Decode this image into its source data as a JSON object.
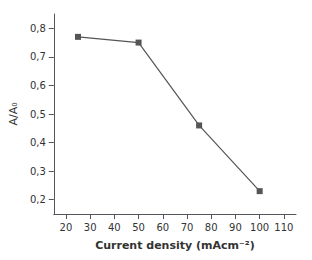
{
  "chart_data": {
    "type": "line",
    "x": [
      25,
      50,
      75,
      100
    ],
    "values": [
      0.77,
      0.75,
      0.46,
      0.23
    ],
    "xlabel": "Current density (mAcm⁻²)",
    "ylabel": "A/A₀",
    "xlim": [
      15,
      115
    ],
    "ylim": [
      0.15,
      0.85
    ],
    "xticks": [
      20,
      30,
      40,
      50,
      60,
      70,
      80,
      90,
      100,
      110
    ],
    "yticks": [
      {
        "value": 0.2,
        "label": "0,2"
      },
      {
        "value": 0.3,
        "label": "0,3"
      },
      {
        "value": 0.4,
        "label": "0,4"
      },
      {
        "value": 0.5,
        "label": "0,5"
      },
      {
        "value": 0.6,
        "label": "0,6"
      },
      {
        "value": 0.7,
        "label": "0,7"
      },
      {
        "value": 0.8,
        "label": "0,8"
      }
    ],
    "marker": "square",
    "color": "#555555",
    "grid": false
  }
}
